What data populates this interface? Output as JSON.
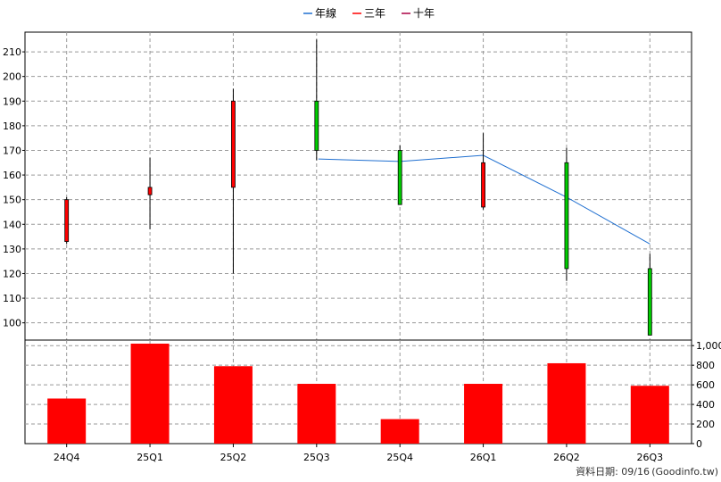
{
  "chart_data": {
    "type": "candlestick",
    "quarters": [
      "24Q4",
      "25Q1",
      "25Q2",
      "25Q3",
      "25Q4",
      "26Q1",
      "26Q2",
      "26Q3"
    ],
    "ohlc": [
      {
        "open": 133,
        "high": 151,
        "low": 132,
        "close": 150
      },
      {
        "open": 152,
        "high": 167,
        "low": 138,
        "close": 155
      },
      {
        "open": 155,
        "high": 195,
        "low": 120,
        "close": 190
      },
      {
        "open": 190,
        "high": 215,
        "low": 166,
        "close": 170
      },
      {
        "open": 170,
        "high": 172,
        "low": 148,
        "close": 148
      },
      {
        "open": 147,
        "high": 177,
        "low": 146,
        "close": 165
      },
      {
        "open": 165,
        "high": 171,
        "low": 117,
        "close": 122
      },
      {
        "open": 122,
        "high": 128,
        "low": 95,
        "close": 95
      }
    ],
    "up_color": "#ff0000",
    "down_color": "#00cc00",
    "lines": [
      {
        "name": "年線",
        "color": "#1f6fd0",
        "values": [
          null,
          null,
          null,
          166.5,
          165.5,
          168,
          151,
          132
        ]
      },
      {
        "name": "三年",
        "color": "#ff0000",
        "values": []
      },
      {
        "name": "十年",
        "color": "#aa0044",
        "values": []
      }
    ],
    "price_axis": {
      "min": 93,
      "max": 218,
      "ticks": [
        100,
        110,
        120,
        130,
        140,
        150,
        160,
        170,
        180,
        190,
        200,
        210
      ]
    },
    "volume": {
      "color": "#ff0000",
      "values": [
        460,
        1020,
        790,
        610,
        250,
        610,
        820,
        590
      ],
      "axis": {
        "min": 0,
        "max": 1020,
        "ticks": [
          0,
          200,
          400,
          600,
          800,
          1000
        ],
        "tick_labels": [
          "0",
          "200",
          "400",
          "600",
          "800",
          "1,000"
        ]
      }
    },
    "grid": true,
    "legend_position": "top-center"
  },
  "footer": {
    "date_text": "資料日期: 09/16",
    "source_text": "(Goodinfo.tw)"
  }
}
